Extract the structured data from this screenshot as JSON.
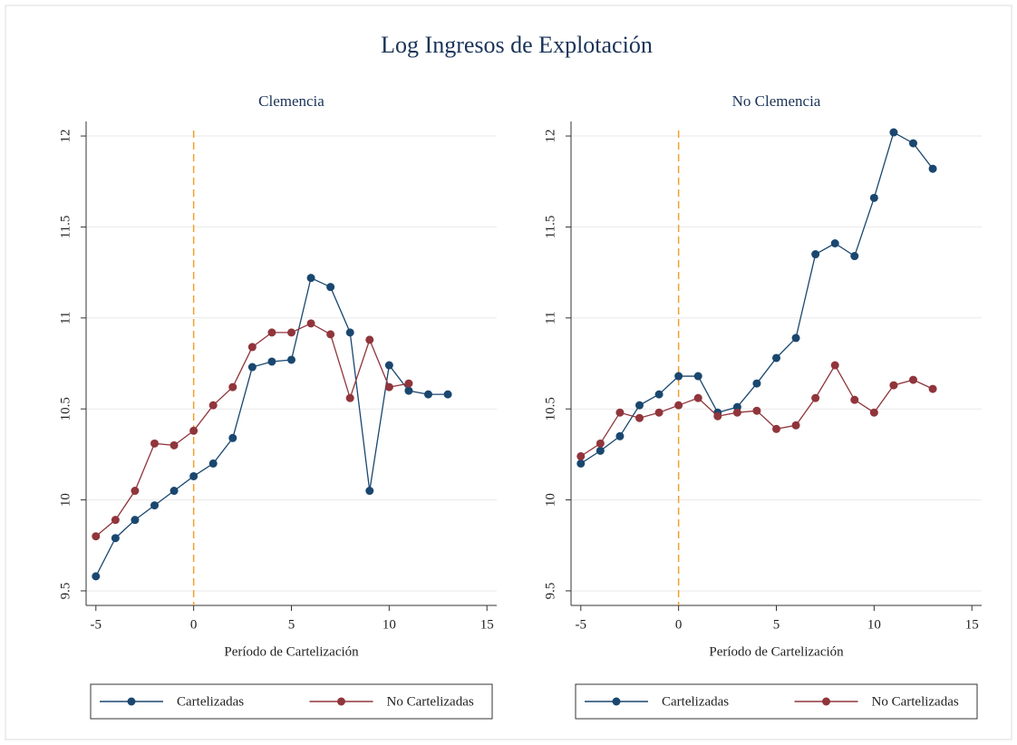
{
  "title": "Log Ingresos de Explotación",
  "chart_data": [
    {
      "type": "line",
      "title": "Clemencia",
      "x_label": "Período de Cartelización",
      "x": [
        -5,
        -4,
        -3,
        -2,
        -1,
        0,
        1,
        2,
        3,
        4,
        5,
        6,
        7,
        8,
        9,
        10,
        11,
        12,
        13
      ],
      "series": [
        {
          "name": "Cartelizadas",
          "color": "#1a476f",
          "values": [
            9.58,
            9.79,
            9.89,
            9.97,
            10.05,
            10.13,
            10.2,
            10.34,
            10.73,
            10.76,
            10.77,
            11.22,
            11.17,
            10.92,
            10.05,
            10.74,
            10.6,
            10.58,
            10.58
          ]
        },
        {
          "name": "No Cartelizadas",
          "color": "#90353b",
          "values": [
            9.8,
            9.89,
            10.05,
            10.31,
            10.3,
            10.38,
            10.52,
            10.62,
            10.84,
            10.92,
            10.92,
            10.97,
            10.91,
            10.56,
            10.88,
            10.62,
            10.64,
            null,
            null
          ]
        }
      ],
      "vline": 0,
      "vline_color": "#f0a030",
      "xlim": [
        -5.5,
        15.5
      ],
      "xticks": [
        -5,
        0,
        5,
        10,
        15
      ],
      "ylim": [
        9.42,
        12.08
      ],
      "yticks": [
        9.5,
        10,
        10.5,
        11,
        11.5,
        12
      ],
      "grid": true
    },
    {
      "type": "line",
      "title": "No Clemencia",
      "x_label": "Período de Cartelización",
      "x": [
        -5,
        -4,
        -3,
        -2,
        -1,
        0,
        1,
        2,
        3,
        4,
        5,
        6,
        7,
        8,
        9,
        10,
        11,
        12,
        13
      ],
      "series": [
        {
          "name": "Cartelizadas",
          "color": "#1a476f",
          "values": [
            10.2,
            10.27,
            10.35,
            10.52,
            10.58,
            10.68,
            10.68,
            10.48,
            10.51,
            10.64,
            10.78,
            10.89,
            11.35,
            11.41,
            11.34,
            11.66,
            12.02,
            11.96,
            11.82
          ]
        },
        {
          "name": "No Cartelizadas",
          "color": "#90353b",
          "values": [
            10.24,
            10.31,
            10.48,
            10.45,
            10.48,
            10.52,
            10.56,
            10.46,
            10.48,
            10.49,
            10.39,
            10.41,
            10.56,
            10.74,
            10.55,
            10.48,
            10.63,
            10.66,
            10.61
          ]
        }
      ],
      "vline": 0,
      "vline_color": "#f0a030",
      "xlim": [
        -5.5,
        15.5
      ],
      "xticks": [
        -5,
        0,
        5,
        10,
        15
      ],
      "ylim": [
        9.42,
        12.08
      ],
      "yticks": [
        9.5,
        10,
        10.5,
        11,
        11.5,
        12
      ],
      "grid": true
    }
  ]
}
